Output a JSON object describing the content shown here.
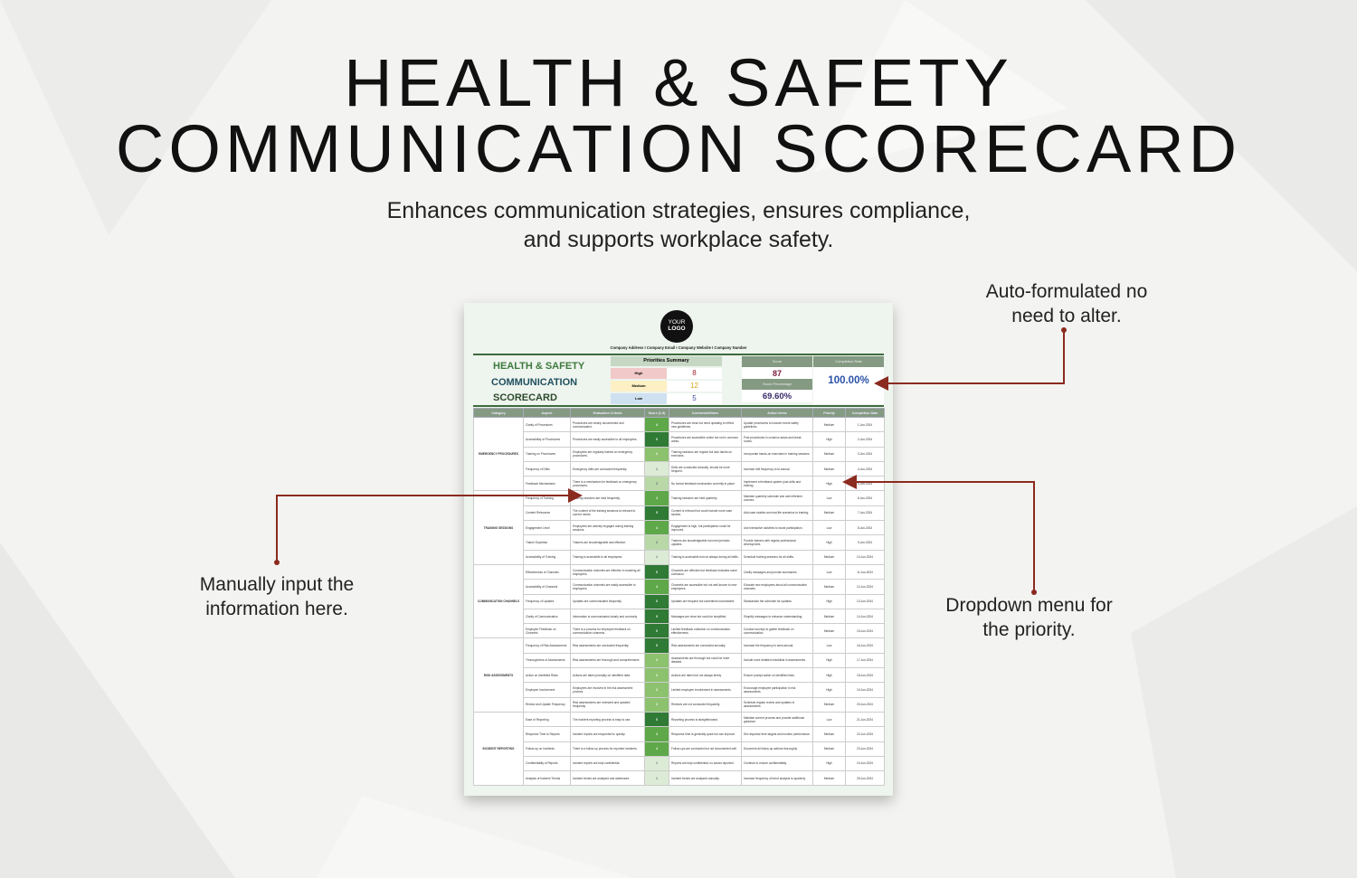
{
  "headline": {
    "line1": "HEALTH & SAFETY",
    "line2": "COMMUNICATION SCORECARD",
    "subtitle1": "Enhances communication strategies, ensures compliance,",
    "subtitle2": "and supports workplace safety."
  },
  "callouts": {
    "auto": [
      "Auto-formulated no",
      "need to alter."
    ],
    "manual": [
      "Manually input the",
      "information here."
    ],
    "dropdown": [
      "Dropdown menu for",
      "the priority."
    ]
  },
  "colors": {
    "arrow": "#8b2a1f",
    "header_green": "#849a82",
    "title_green": "#3d7a3d",
    "title_teal": "#1f4f5f"
  },
  "document": {
    "logo": [
      "YOUR",
      "LOGO"
    ],
    "contact": "Company Address  I  Company Email  I  Company Website  I  Company Number",
    "title": [
      "HEALTH & SAFETY",
      "COMMUNICATION",
      "SCORECARD"
    ],
    "priorities_summary": {
      "title": "Priorities Summary",
      "items": [
        {
          "label": "High",
          "count": "8"
        },
        {
          "label": "Medium",
          "count": "12"
        },
        {
          "label": "Low",
          "count": "5"
        }
      ]
    },
    "score_label": "Score",
    "score": "87",
    "score_pct_label": "Score Percentage",
    "score_pct": "69.60%",
    "completion_label": "Completion Rate",
    "completion": "100.00%",
    "columns": [
      "Category",
      "Aspect",
      "Evaluation Criteria",
      "Score (1-5)",
      "Comments/Notes",
      "Action Items",
      "Priority",
      "Completion Date"
    ],
    "groups": [
      {
        "category": "EMERGENCY PROCEDURES",
        "rows": [
          [
            "Clarity of Procedures",
            "Procedures are clearly documented and communicated.",
            "4",
            "Procedures are clear but need updating to reflect new guidelines.",
            "Update procedures to include recent safety guidelines.",
            "Medium",
            "1-Jun-2024"
          ],
          [
            "Accessibility of Procedures",
            "Procedures are easily accessible to all employees.",
            "5",
            "Procedures are accessible online but not in common areas.",
            "Post procedures in common areas and break rooms.",
            "High",
            "2-Jun-2024"
          ],
          [
            "Training on Procedures",
            "Employees are regularly trained on emergency procedures.",
            "3",
            "Training sessions are regular but lack hands-on exercises.",
            "Incorporate hands-on exercises in training sessions.",
            "Medium",
            "3-Jun-2024"
          ],
          [
            "Frequency of Drills",
            "Emergency drills are conducted frequently.",
            "1",
            "Drills are conducted annually; should be more frequent.",
            "Increase drill frequency to bi-annual.",
            "Medium",
            "4-Jun-2024"
          ],
          [
            "Feedback Mechanisms",
            "There is a mechanism for feedback on emergency procedures.",
            "2",
            "No formal feedback mechanism currently in place.",
            "Implement a feedback system post-drills and training.",
            "High",
            "5-Jun-2024"
          ]
        ]
      },
      {
        "category": "TRAINING SESSIONS",
        "rows": [
          [
            "Frequency of Training",
            "Training sessions are held frequently.",
            "4",
            "Training sessions are held quarterly.",
            "Maintain quarterly schedule and add refresher courses.",
            "Low",
            "6-Jun-2024"
          ],
          [
            "Content Relevance",
            "The content of the training sessions is relevant to current needs.",
            "5",
            "Content is relevant but could include more case studies.",
            "Add case studies and real-life scenarios to training.",
            "Medium",
            "7-Jun-2024"
          ],
          [
            "Engagement Level",
            "Employees are actively engaged during training sessions.",
            "4",
            "Engagement is high, but participation could be improved.",
            "Use interactive activities to boost participation.",
            "Low",
            "8-Jun-2024"
          ],
          [
            "Trainer Expertise",
            "Trainers are knowledgeable and effective.",
            "2",
            "Trainers are knowledgeable but need periodic updates.",
            "Provide trainers with regular professional development.",
            "High",
            "9-Jun-2024"
          ],
          [
            "Accessibility of Training",
            "Training is accessible to all employees.",
            "1",
            "Training is accessible but not always during all shifts.",
            "Schedule training sessions for all shifts.",
            "Medium",
            "10-Jun-2024"
          ]
        ]
      },
      {
        "category": "COMMUNICATION CHANNELS",
        "rows": [
          [
            "Effectiveness of Channels",
            "Communication channels are effective in reaching all employees.",
            "5",
            "Channels are effective but feedback indicates some confusion.",
            "Clarify messages and provide summaries.",
            "Low",
            "11-Jun-2024"
          ],
          [
            "Accessibility of Channels",
            "Communication channels are easily accessible to employees.",
            "4",
            "Channels are accessible but not well-known to new employees.",
            "Educate new employees about all communication channels.",
            "Medium",
            "12-Jun-2024"
          ],
          [
            "Frequency of Updates",
            "Updates are communicated frequently.",
            "5",
            "Updates are frequent but sometimes inconsistent.",
            "Standardize the schedule for updates.",
            "High",
            "13-Jun-2024"
          ],
          [
            "Clarity of Communication",
            "Information is communicated clearly and concisely.",
            "5",
            "Messages are clear but could be simplified.",
            "Simplify messages to enhance understanding.",
            "Medium",
            "14-Jun-2024"
          ],
          [
            "Employee Feedback on Channels",
            "There is a process for employee feedback on communication channels.",
            "5",
            "Limited feedback collection on communication effectiveness.",
            "Conduct surveys to gather feedback on communication.",
            "Medium",
            "15-Jun-2024"
          ]
        ]
      },
      {
        "category": "RISK ASSESSMENTS",
        "rows": [
          [
            "Frequency of Risk Assessments",
            "Risk assessments are conducted frequently.",
            "5",
            "Risk assessments are conducted annually.",
            "Increase the frequency to semi-annual.",
            "Low",
            "16-Jun-2024"
          ],
          [
            "Thoroughness of Assessments",
            "Risk assessments are thorough and comprehensive.",
            "3",
            "Assessments are thorough but could be more detailed.",
            "Include more detailed checklists in assessments.",
            "High",
            "17-Jun-2024"
          ],
          [
            "Action on Identified Risks",
            "Actions are taken promptly on identified risks.",
            "3",
            "Actions are taken but not always timely.",
            "Ensure prompt action on identified risks.",
            "High",
            "18-Jun-2024"
          ],
          [
            "Employee Involvement",
            "Employees are involved in the risk assessment process.",
            "3",
            "Limited employee involvement in assessments.",
            "Encourage employee participation in risk assessments.",
            "High",
            "19-Jun-2024"
          ],
          [
            "Review and Update Frequency",
            "Risk assessments are reviewed and updated frequently.",
            "3",
            "Reviews are not conducted frequently.",
            "Schedule regular review and updates of assessments.",
            "Medium",
            "20-Jun-2024"
          ]
        ]
      },
      {
        "category": "INCIDENT REPORTING",
        "rows": [
          [
            "Ease of Reporting",
            "The incident reporting process is easy to use.",
            "5",
            "Reporting process is straightforward.",
            "Maintain current process and provide additional guidance.",
            "Low",
            "21-Jun-2024"
          ],
          [
            "Response Time to Reports",
            "Incident reports are responded to quickly.",
            "4",
            "Response time is generally quick but can improve.",
            "Set response time targets and monitor performance.",
            "Medium",
            "22-Jun-2024"
          ],
          [
            "Follow-up on Incidents",
            "There is a follow-up process for reported incidents.",
            "4",
            "Follow-ups are conducted but not documented well.",
            "Document all follow-up actions thoroughly.",
            "Medium",
            "23-Jun-2024"
          ],
          [
            "Confidentiality of Reports",
            "Incident reports are kept confidential.",
            "1",
            "Reports are kept confidential; no issues reported.",
            "Continue to ensure confidentiality.",
            "High",
            "24-Jun-2024"
          ],
          [
            "Analysis of Incident Trends",
            "Incident trends are analyzed and addressed.",
            "1",
            "Incident trends are analyzed annually.",
            "Increase frequency of trend analysis to quarterly.",
            "Medium",
            "25-Jun-2024"
          ]
        ]
      }
    ]
  }
}
